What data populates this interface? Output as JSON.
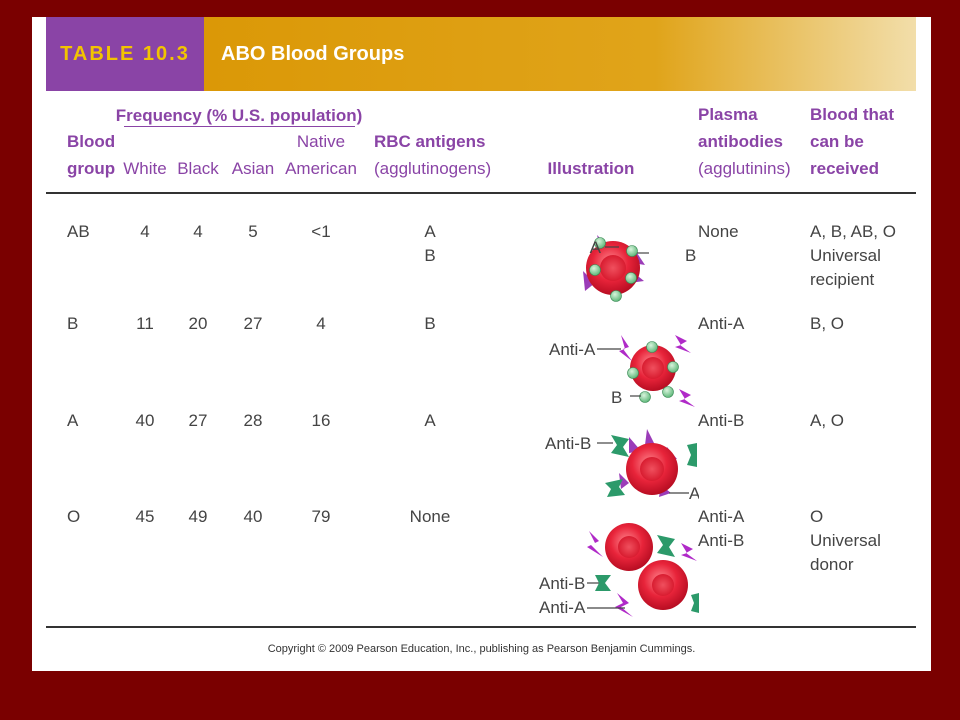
{
  "header": {
    "table_label": "TABLE 10.3",
    "title": "ABO Blood Groups"
  },
  "columns": {
    "blood_group": [
      "Blood",
      "group"
    ],
    "frequency": "Frequency (% U.S. population)",
    "white": "White",
    "black": "Black",
    "asian": "Asian",
    "native_american": [
      "Native",
      "American"
    ],
    "rbc_antigens": [
      "RBC antigens",
      "(agglutinogens)"
    ],
    "illustration": "Illustration",
    "plasma_antibodies": [
      "Plasma",
      "antibodies",
      "(agglutinins)"
    ],
    "blood_received": [
      "Blood that",
      "can be",
      "received"
    ]
  },
  "rows": [
    {
      "group": "AB",
      "white": "4",
      "black": "4",
      "asian": "5",
      "native": "<1",
      "antigens": [
        "A",
        "B"
      ],
      "antibodies": [
        "None"
      ],
      "received": [
        "A, B, AB, O",
        "Universal",
        "recipient"
      ]
    },
    {
      "group": "B",
      "white": "11",
      "black": "20",
      "asian": "27",
      "native": "4",
      "antigens": [
        "B"
      ],
      "antibodies": [
        "Anti-A"
      ],
      "received": [
        "B, O"
      ]
    },
    {
      "group": "A",
      "white": "40",
      "black": "27",
      "asian": "28",
      "native": "16",
      "antigens": [
        "A"
      ],
      "antibodies": [
        "Anti-B"
      ],
      "received": [
        "A, O"
      ]
    },
    {
      "group": "O",
      "white": "45",
      "black": "49",
      "asian": "40",
      "native": "79",
      "antigens": [
        "None"
      ],
      "antibodies": [
        "Anti-A",
        "Anti-B"
      ],
      "received": [
        "O",
        "Universal",
        "donor"
      ]
    }
  ],
  "illustration_labels": {
    "ab_a": "A",
    "ab_b": "B",
    "b_anti_a": "Anti-A",
    "b_b": "B",
    "a_anti_b": "Anti-B",
    "a_a": "A",
    "o_anti_b": "Anti-B",
    "o_anti_a": "Anti-A"
  },
  "colors": {
    "background": "#7a0000",
    "title_bar": "#d99400",
    "label_bg": "#8a44a6",
    "label_text": "#f2c400",
    "header_text": "#8a44a6",
    "cell": "#e8243a",
    "antigen_b": "#8fd4a0",
    "antigen_a": "#9b3cb8",
    "antibody_a": "#b02ac8",
    "antibody_b": "#2c9a6a"
  },
  "footer": {
    "copyright": "Copyright © 2009 Pearson Education, Inc., publishing as Pearson Benjamin Cummings."
  }
}
